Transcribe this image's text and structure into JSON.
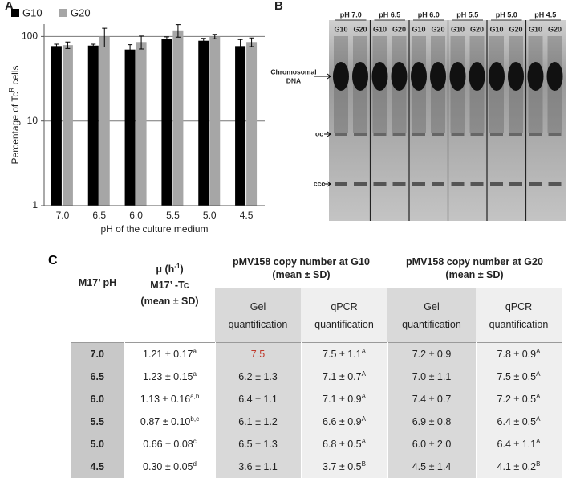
{
  "chart_data": {
    "type": "bar",
    "panel": "A",
    "log_scale": true,
    "x_label": "pH of the culture medium",
    "y_label": [
      "Percentage of Tc",
      {
        "sup": "R"
      },
      " cells"
    ],
    "categories": [
      "7.0",
      "6.5",
      "6.0",
      "5.5",
      "5.0",
      "4.5"
    ],
    "series": [
      {
        "name": "G10",
        "color": "#000000",
        "values": [
          77,
          78,
          70,
          94,
          89,
          77
        ],
        "errors": [
          4,
          3,
          10,
          5,
          6,
          15
        ]
      },
      {
        "name": "G20",
        "color": "#a6a6a6",
        "values": [
          79,
          100,
          86,
          118,
          100,
          86
        ],
        "errors": [
          7,
          25,
          15,
          20,
          6,
          10
        ]
      }
    ],
    "ylim": [
      1,
      140
    ],
    "yticks": [
      1,
      10,
      100
    ],
    "grid": true,
    "legend": "top-left"
  },
  "gel": {
    "panel": "B",
    "lanes": [
      {
        "ph": "pH 7.0",
        "samples": [
          "G10",
          "G20"
        ]
      },
      {
        "ph": "pH 6.5",
        "samples": [
          "G10",
          "G20"
        ]
      },
      {
        "ph": "pH 6.0",
        "samples": [
          "G10",
          "G20"
        ]
      },
      {
        "ph": "pH 5.5",
        "samples": [
          "G10",
          "G20"
        ]
      },
      {
        "ph": "pH 5.0",
        "samples": [
          "G10",
          "G20"
        ]
      },
      {
        "ph": "pH 4.5",
        "samples": [
          "G10",
          "G20"
        ]
      }
    ],
    "bands": [
      [
        "Chromosomal",
        "DNA"
      ],
      [
        "oc"
      ],
      [
        "ccc"
      ]
    ]
  },
  "table": {
    "panel": "C",
    "header": {
      "ph": "M17’ pH",
      "mu": [
        [
          "μ (h",
          {
            "sup": "-1"
          },
          ")"
        ],
        "M17’ -Tc",
        "(mean ± SD)"
      ],
      "g10": [
        "pMV158 copy number at G10",
        "(mean ± SD)"
      ],
      "g20": [
        "pMV158 copy number at G20",
        "(mean ± SD)"
      ],
      "sub": [
        [
          "Gel",
          "quantification"
        ],
        [
          "qPCR",
          "quantification"
        ],
        [
          "Gel",
          "quantification"
        ],
        [
          "qPCR",
          "quantification"
        ]
      ]
    },
    "rows": [
      [
        "7.0",
        [
          "1.21 ± 0.17",
          {
            "sup": "a"
          }
        ],
        "7.5",
        [
          "7.5 ± 1.1",
          {
            "sup": "A"
          }
        ],
        "7.2 ± 0.9",
        [
          "7.8 ± 0.9",
          {
            "sup": "A"
          }
        ]
      ],
      [
        "6.5",
        [
          "1.23 ± 0.15",
          {
            "sup": "a"
          }
        ],
        "6.2 ± 1.3",
        [
          "7.1 ± 0.7",
          {
            "sup": "A"
          }
        ],
        "7.0 ± 1.1",
        [
          "7.5 ± 0.5",
          {
            "sup": "A"
          }
        ]
      ],
      [
        "6.0",
        [
          "1.13 ± 0.16",
          {
            "sup": "a,b"
          }
        ],
        "6.4 ± 1.1",
        [
          "7.1 ± 0.9",
          {
            "sup": "A"
          }
        ],
        "7.4 ± 0.7",
        [
          "7.2 ± 0.5",
          {
            "sup": "A"
          }
        ]
      ],
      [
        "5.5",
        [
          "0.87 ± 0.10",
          {
            "sup": "b,c"
          }
        ],
        "6.1 ± 1.2",
        [
          "6.6 ± 0.9",
          {
            "sup": "A"
          }
        ],
        "6.9 ± 0.8",
        [
          "6.4 ± 0.5",
          {
            "sup": "A"
          }
        ]
      ],
      [
        "5.0",
        [
          "0.66 ± 0.08",
          {
            "sup": "c"
          }
        ],
        "6.5 ± 1.3",
        [
          "6.8 ± 0.5",
          {
            "sup": "A"
          }
        ],
        "6.0 ± 2.0",
        [
          "6.4 ± 1.1",
          {
            "sup": "A"
          }
        ]
      ],
      [
        "4.5",
        [
          "0.30 ± 0.05",
          {
            "sup": "d"
          }
        ],
        "3.6 ± 1.1",
        [
          "3.7 ± 0.5",
          {
            "sup": "B"
          }
        ],
        "4.5 ± 1.4",
        [
          "4.1 ± 0.2",
          {
            "sup": "B"
          }
        ]
      ]
    ]
  }
}
